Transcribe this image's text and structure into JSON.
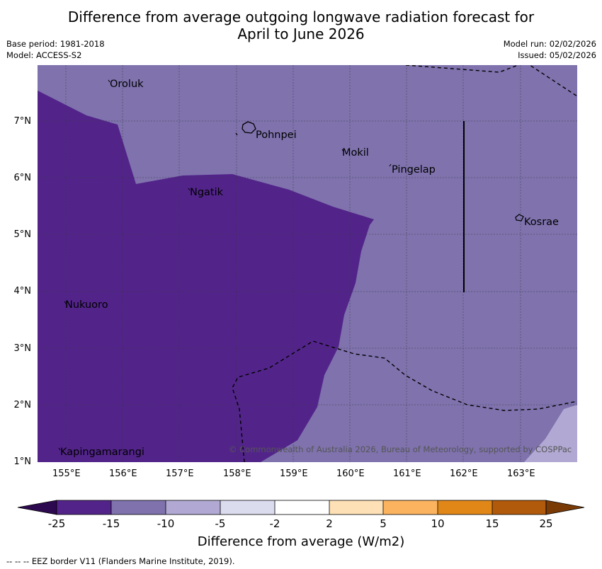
{
  "header": {
    "title_line1": "Difference from average outgoing longwave radiation forecast for",
    "title_line2": "April to June 2026",
    "base_period": "Base period: 1981-2018",
    "model": "Model: ACCESS-S2",
    "model_run": "Model run: 02/02/2026",
    "issued": "Issued: 05/02/2026"
  },
  "map": {
    "lon_labels": [
      "155°E",
      "156°E",
      "157°E",
      "158°E",
      "159°E",
      "160°E",
      "161°E",
      "162°E",
      "163°E"
    ],
    "lat_labels": [
      "7°N",
      "6°N",
      "5°N",
      "4°N",
      "3°N",
      "2°N",
      "1°N"
    ],
    "places": [
      "Oroluk",
      "Pohnpei",
      "Mokil",
      "Pingelap",
      "Ngatik",
      "Kosrae",
      "Nukuoro",
      "Kapingamarangi"
    ],
    "copyright": "© Commonwealth of Australia 2026, Bureau of Meteorology, supported by COSPPac",
    "colors": {
      "below_25": "#2d0a4f",
      "m25_m15": "#52248a",
      "m15_m10": "#7f72ad",
      "m10_m5": "#b1a9d3",
      "m5_m2": "#dcdcef",
      "m2_2": "#ffffff",
      "p2_5": "#fde0b6",
      "p5_10": "#fbb35f",
      "p10_15": "#e08718",
      "p15_25": "#b25a0b",
      "above_25": "#7a3a06"
    }
  },
  "colorbar": {
    "tick_labels": [
      "-25",
      "-15",
      "-10",
      "-5",
      "-2",
      "2",
      "5",
      "10",
      "15",
      "25"
    ],
    "title": "Difference from average (W/m2)"
  },
  "footnote": "--  --  -- EEZ border V11 (Flanders Marine Institute, 2019)."
}
